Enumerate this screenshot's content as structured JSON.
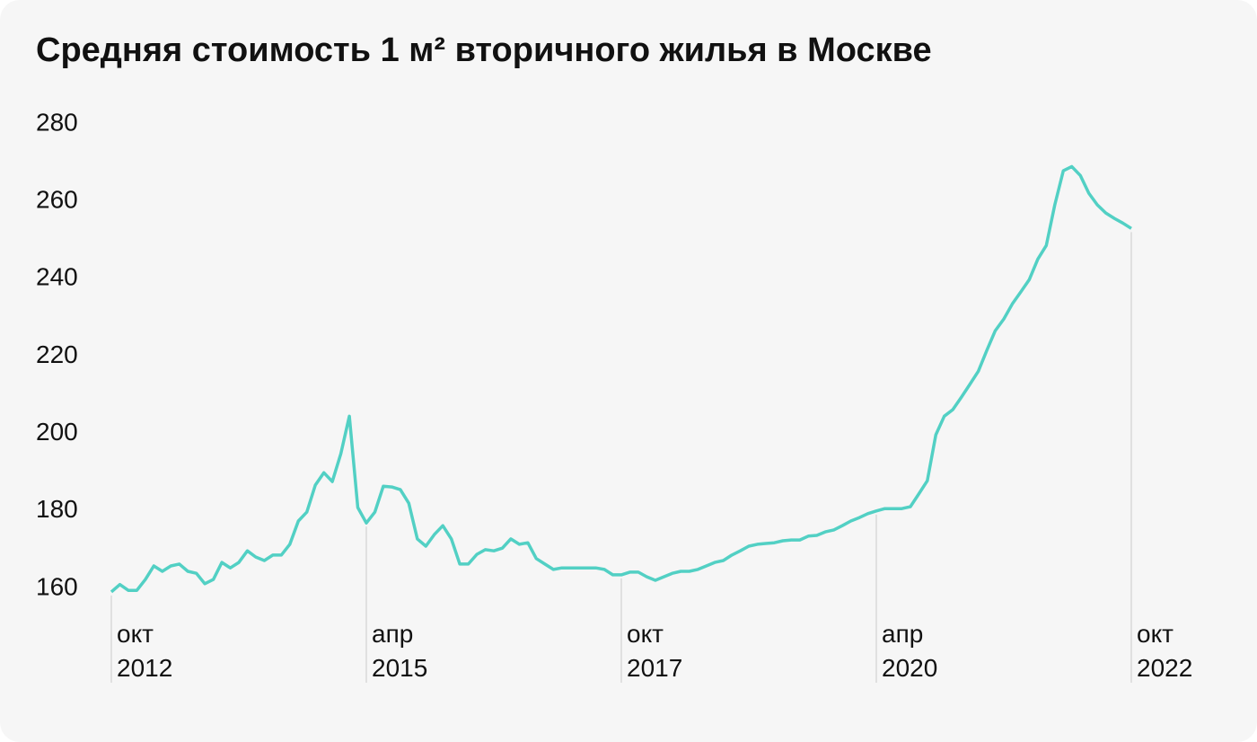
{
  "chart_data": {
    "type": "line",
    "title": "Средняя стоимость 1 м² вторичного жилья в Москве",
    "x": [
      "2012-10",
      "2012-11",
      "2012-12",
      "2013-01",
      "2013-02",
      "2013-03",
      "2013-04",
      "2013-05",
      "2013-06",
      "2013-07",
      "2013-08",
      "2013-09",
      "2013-10",
      "2013-11",
      "2013-12",
      "2014-01",
      "2014-02",
      "2014-03",
      "2014-04",
      "2014-05",
      "2014-06",
      "2014-07",
      "2014-08",
      "2014-09",
      "2014-10",
      "2014-11",
      "2014-12",
      "2015-01",
      "2015-02",
      "2015-03",
      "2015-04",
      "2015-05",
      "2015-06",
      "2015-07",
      "2015-08",
      "2015-09",
      "2015-10",
      "2015-11",
      "2015-12",
      "2016-01",
      "2016-02",
      "2016-03",
      "2016-04",
      "2016-05",
      "2016-06",
      "2016-07",
      "2016-08",
      "2016-09",
      "2016-10",
      "2016-11",
      "2016-12",
      "2017-01",
      "2017-02",
      "2017-03",
      "2017-04",
      "2017-05",
      "2017-06",
      "2017-07",
      "2017-08",
      "2017-09",
      "2017-10",
      "2017-11",
      "2017-12",
      "2018-01",
      "2018-02",
      "2018-03",
      "2018-04",
      "2018-05",
      "2018-06",
      "2018-07",
      "2018-08",
      "2018-09",
      "2018-10",
      "2018-11",
      "2018-12",
      "2019-01",
      "2019-02",
      "2019-03",
      "2019-04",
      "2019-05",
      "2019-06",
      "2019-07",
      "2019-08",
      "2019-09",
      "2019-10",
      "2019-11",
      "2019-12",
      "2020-01",
      "2020-02",
      "2020-03",
      "2020-04",
      "2020-05",
      "2020-06",
      "2020-07",
      "2020-08",
      "2020-09",
      "2020-10",
      "2020-11",
      "2020-12",
      "2021-01",
      "2021-02",
      "2021-03",
      "2021-04",
      "2021-05",
      "2021-06",
      "2021-07",
      "2021-08",
      "2021-09",
      "2021-10",
      "2021-11",
      "2021-12",
      "2022-01",
      "2022-02",
      "2022-03",
      "2022-04",
      "2022-05",
      "2022-06",
      "2022-07",
      "2022-08",
      "2022-09",
      "2022-10"
    ],
    "series": [
      {
        "color": "#52d0c4",
        "values": [
          159.1,
          161,
          159.5,
          159.5,
          162.3,
          165.8,
          164.4,
          165.8,
          166.3,
          164.4,
          163.9,
          161.2,
          162.3,
          166.7,
          165.3,
          166.7,
          169.7,
          168.1,
          167.2,
          168.6,
          168.6,
          171.4,
          177.4,
          179.7,
          186.7,
          189.9,
          187.6,
          194.8,
          204.5,
          180.9,
          176.9,
          179.7,
          186.4,
          186.2,
          185.5,
          182,
          172.8,
          170.9,
          173.9,
          176.2,
          172.8,
          166.3,
          166.3,
          168.8,
          170,
          169.7,
          170.4,
          172.8,
          171.4,
          171.8,
          167.7,
          166.3,
          164.9,
          165.3,
          165.3,
          165.3,
          165.3,
          165.3,
          164.9,
          163.5,
          163.5,
          164.2,
          164.2,
          163,
          162.1,
          163,
          163.9,
          164.4,
          164.4,
          164.9,
          165.8,
          166.7,
          167.2,
          168.6,
          169.7,
          170.9,
          171.4,
          171.6,
          171.8,
          172.3,
          172.5,
          172.5,
          173.5,
          173.7,
          174.6,
          175.1,
          176.2,
          177.4,
          178.3,
          179.3,
          180,
          180.6,
          180.6,
          180.6,
          181.1,
          184.4,
          187.8,
          199.7,
          204.5,
          206.2,
          209.4,
          212.7,
          216.1,
          221.5,
          226.6,
          229.6,
          233.5,
          236.6,
          239.8,
          245.1,
          248.6,
          259.1,
          267.9,
          269,
          266.7,
          262.1,
          259.1,
          257,
          255.6,
          254.4,
          253
        ]
      }
    ],
    "xlim": [
      "2012-10",
      "2022-10"
    ],
    "xticks": [
      {
        "value": "2012-10",
        "label": "окт 2012"
      },
      {
        "value": "2015-04",
        "label": "апр 2015"
      },
      {
        "value": "2017-10",
        "label": "окт 2017"
      },
      {
        "value": "2020-04",
        "label": "апр 2020"
      },
      {
        "value": "2022-10",
        "label": "окт 2022"
      }
    ],
    "ylim": [
      160,
      280
    ],
    "yticks": [
      160,
      180,
      200,
      220,
      240,
      260,
      280
    ]
  }
}
